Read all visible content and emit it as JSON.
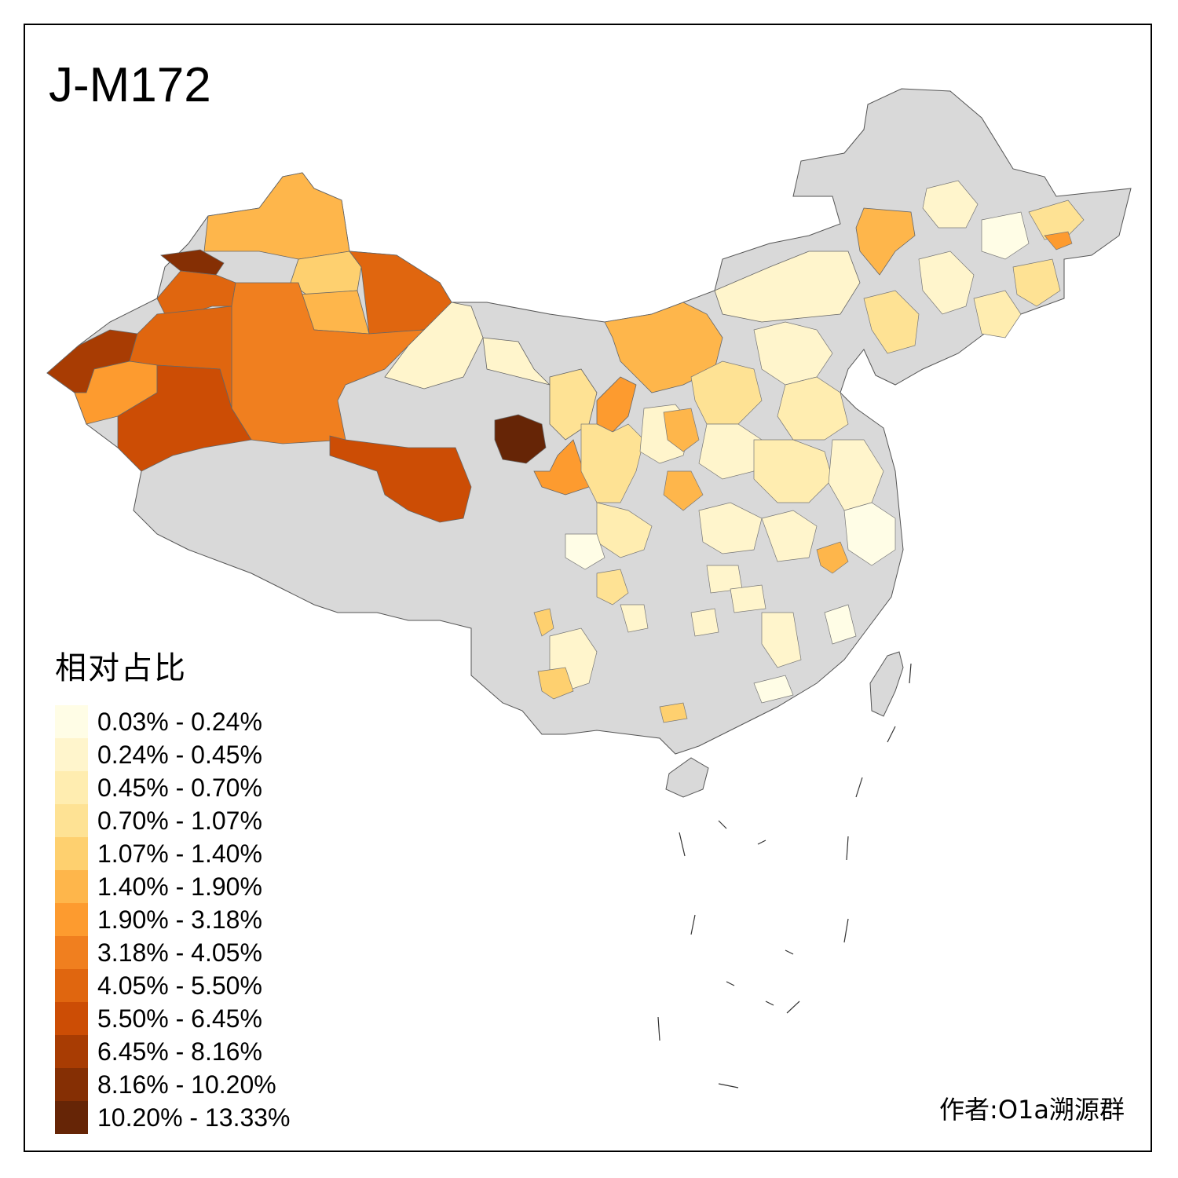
{
  "title": "J-M172",
  "legend": {
    "title": "相对占比",
    "bins": [
      {
        "label": "0.03% - 0.24%",
        "color": "#fffde6"
      },
      {
        "label": "0.24% - 0.45%",
        "color": "#fff5cc"
      },
      {
        "label": "0.45% - 0.70%",
        "color": "#ffedb0"
      },
      {
        "label": "0.70% - 1.07%",
        "color": "#fee294"
      },
      {
        "label": "1.07% - 1.40%",
        "color": "#fed06f"
      },
      {
        "label": "1.40% - 1.90%",
        "color": "#feb64b"
      },
      {
        "label": "1.90% - 3.18%",
        "color": "#fd9b2f"
      },
      {
        "label": "3.18% - 4.05%",
        "color": "#f07f1f"
      },
      {
        "label": "4.05% - 5.50%",
        "color": "#e0660f"
      },
      {
        "label": "5.50% - 6.45%",
        "color": "#cc4d05"
      },
      {
        "label": "6.45% - 8.16%",
        "color": "#a83c03"
      },
      {
        "label": "8.16% - 10.20%",
        "color": "#852f04"
      },
      {
        "label": "10.20% - 13.33%",
        "color": "#662506"
      }
    ]
  },
  "no_data_color": "#d9d9d9",
  "credit": "作者:O1a溯源群"
}
